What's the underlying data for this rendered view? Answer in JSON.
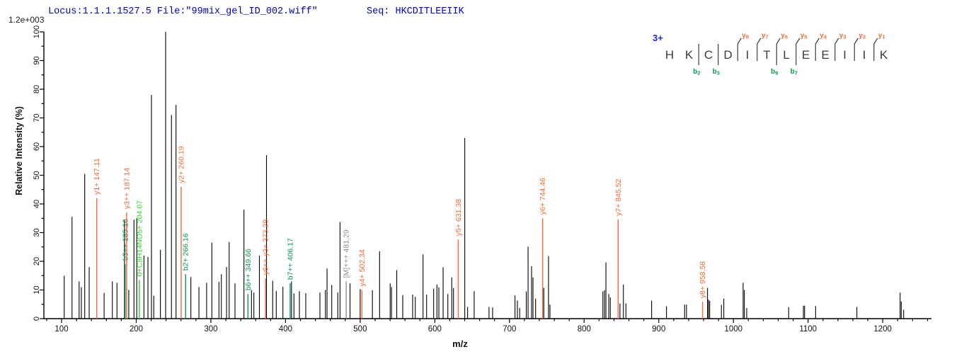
{
  "header": {
    "locus_file": "Locus:1.1.1.1527.5 File:\"99mix_gel_ID_002.wiff\"",
    "seq": "Seq: HKCDITLEEIIK"
  },
  "chart_data": {
    "type": "bar",
    "subtype": "ms2-fragmentation-spectrum",
    "xlabel": "m/z",
    "ylabel": "Relative Intensity (%)",
    "intensity_scale": "1.2e+003",
    "x_axis": {
      "min": 76,
      "max": 1270,
      "major_tick": 100,
      "minor_tick": 20,
      "first_label": 100,
      "last_label": 1200
    },
    "y_axis": {
      "min": 0,
      "max": 100,
      "major_tick": 10,
      "minor_tick": 5
    },
    "legend": "none",
    "grid": false,
    "colors": {
      "y_ion": "#f26b3a",
      "b_ion": "#0a9a50",
      "mod": "#2cd42c",
      "precursor": "#909090",
      "peak": "#000000",
      "header_blue": "#0000c8",
      "charge_blue": "#2222ee",
      "residue_gray": "#3c3c3c"
    },
    "peaks": [
      [
        103.5,
        15
      ],
      [
        114,
        35.5
      ],
      [
        123.5,
        13
      ],
      [
        126.5,
        11
      ],
      [
        131,
        50.5
      ],
      [
        137,
        18
      ],
      [
        157,
        9
      ],
      [
        168,
        13
      ],
      [
        174.2,
        12.5
      ],
      [
        184.3,
        34.5
      ],
      [
        190,
        10
      ],
      [
        197,
        34.5
      ],
      [
        200.7,
        35
      ],
      [
        210.3,
        22
      ],
      [
        215.7,
        21.5
      ],
      [
        220.4,
        78
      ],
      [
        223.5,
        8
      ],
      [
        232.4,
        24
      ],
      [
        239.4,
        100
      ],
      [
        247.2,
        71
      ],
      [
        253.3,
        74.5
      ],
      [
        273.2,
        14.5
      ],
      [
        284,
        11
      ],
      [
        294.3,
        12.5
      ],
      [
        301.3,
        26.5
      ],
      [
        310.8,
        12.8
      ],
      [
        314,
        15.5
      ],
      [
        321,
        18
      ],
      [
        324.5,
        26.7
      ],
      [
        332.3,
        12.3
      ],
      [
        344.3,
        38
      ],
      [
        354.4,
        10
      ],
      [
        357.6,
        9.1
      ],
      [
        365,
        22
      ],
      [
        374.5,
        57
      ],
      [
        382.8,
        13.2
      ],
      [
        387.6,
        9.6
      ],
      [
        396.5,
        11.1
      ],
      [
        408,
        13
      ],
      [
        411.3,
        8.8
      ],
      [
        418.6,
        9.6
      ],
      [
        427.1,
        8.9
      ],
      [
        446.1,
        9.1
      ],
      [
        453.4,
        10
      ],
      [
        455.6,
        17.5
      ],
      [
        461.9,
        11.7
      ],
      [
        470,
        9.1
      ],
      [
        473,
        33.7
      ],
      [
        486.4,
        12.3
      ],
      [
        500,
        10.3
      ],
      [
        516.4,
        9.9
      ],
      [
        526,
        23.5
      ],
      [
        540.2,
        12.3
      ],
      [
        542,
        11
      ],
      [
        549,
        16.9
      ],
      [
        557,
        8.2
      ],
      [
        570.3,
        8.4
      ],
      [
        573.8,
        7.6
      ],
      [
        584.2,
        22.4
      ],
      [
        589,
        8.4
      ],
      [
        598.4,
        10.5
      ],
      [
        602.8,
        11.9
      ],
      [
        605.4,
        10.9
      ],
      [
        611.1,
        17.9
      ],
      [
        617.4,
        8.6
      ],
      [
        622.7,
        14.4
      ],
      [
        625,
        10.7
      ],
      [
        640.1,
        63
      ],
      [
        643.9,
        4.1
      ],
      [
        652.7,
        9.6
      ],
      [
        672.6,
        4.1
      ],
      [
        677.4,
        3.9
      ],
      [
        707.4,
        8.1
      ],
      [
        710.6,
        6.3
      ],
      [
        713.7,
        3.7
      ],
      [
        722.5,
        9.5
      ],
      [
        724.9,
        25.1
      ],
      [
        729.6,
        18.3
      ],
      [
        731.5,
        14.4
      ],
      [
        735,
        7
      ],
      [
        746,
        10.7
      ],
      [
        752.3,
        21.8
      ],
      [
        754.2,
        4.9
      ],
      [
        825.1,
        9.5
      ],
      [
        827.3,
        9.9
      ],
      [
        829.2,
        19.6
      ],
      [
        833,
        8.6
      ],
      [
        835.1,
        7.4
      ],
      [
        848,
        5.3
      ],
      [
        852.6,
        11.9
      ],
      [
        856,
        5.3
      ],
      [
        890.4,
        6.3
      ],
      [
        910.3,
        4.3
      ],
      [
        934.6,
        4.9
      ],
      [
        937.1,
        4.9
      ],
      [
        965.3,
        10.7
      ],
      [
        966.6,
        6.6
      ],
      [
        968.2,
        6.2
      ],
      [
        983.9,
        4.8
      ],
      [
        987.1,
        7
      ],
      [
        1013,
        12.5
      ],
      [
        1014.6,
        10
      ],
      [
        1017.8,
        3.7
      ],
      [
        1074,
        4
      ],
      [
        1093.7,
        4.5
      ],
      [
        1095.3,
        4.5
      ],
      [
        1110.1,
        4.4
      ],
      [
        1165.4,
        4.1
      ],
      [
        1223.3,
        9.1
      ],
      [
        1224.8,
        6
      ],
      [
        1228,
        3.1
      ]
    ],
    "annotated_peaks": [
      {
        "label": "y1+ 147.11",
        "mz": 147.11,
        "intensity": 42,
        "color": "y_ion"
      },
      {
        "label": "b3++ 185.16",
        "mz": 185.16,
        "intensity": 19,
        "color": "b_ion"
      },
      {
        "label": "y3++ 187.14",
        "mz": 187.14,
        "intensity": 37,
        "color": "y_ion"
      },
      {
        "label": "0+C8H14NO5+ 204.07",
        "mz": 204.07,
        "intensity": 13.5,
        "color": "mod"
      },
      {
        "label": "y2+ 260.19",
        "mz": 260.19,
        "intensity": 46,
        "color": "y_ion"
      },
      {
        "label": "b2+ 266.16",
        "mz": 266.16,
        "intensity": 15.5,
        "color": "b_ion"
      },
      {
        "label": "b6++ 349.66",
        "mz": 349.66,
        "intensity": 8.6,
        "color": "b_ion"
      },
      {
        "label": "y6++ y3+ 373.29",
        "mz": 373.29,
        "intensity": 14,
        "color": "y_ion"
      },
      {
        "label": "b7++ 406.17",
        "mz": 406.17,
        "intensity": 12.3,
        "color": "b_ion"
      },
      {
        "label": "[M]+++ 481.29",
        "mz": 481.29,
        "intensity": 13,
        "color": "precursor"
      },
      {
        "label": "y4+ 502.34",
        "mz": 502.34,
        "intensity": 10,
        "color": "y_ion"
      },
      {
        "label": "y5+ 631.38",
        "mz": 631.38,
        "intensity": 27.6,
        "color": "y_ion"
      },
      {
        "label": "y6+ 744.46",
        "mz": 744.46,
        "intensity": 35,
        "color": "y_ion"
      },
      {
        "label": "y7+ 845.52",
        "mz": 845.52,
        "intensity": 34.6,
        "color": "y_ion"
      },
      {
        "label": "y8+ 958.58",
        "mz": 958.58,
        "intensity": 5.9,
        "color": "y_ion"
      }
    ]
  },
  "sequence_panel": {
    "charge_label": "3+",
    "residues": [
      "H",
      "K",
      "C",
      "D",
      "I",
      "T",
      "L",
      "E",
      "E",
      "I",
      "I",
      "K"
    ],
    "y_ions": [
      {
        "ion": "y8",
        "after": 4
      },
      {
        "ion": "y7",
        "after": 5
      },
      {
        "ion": "y6",
        "after": 6
      },
      {
        "ion": "y5",
        "after": 7
      },
      {
        "ion": "y4",
        "after": 8
      },
      {
        "ion": "y3",
        "after": 9
      },
      {
        "ion": "y2",
        "after": 10
      },
      {
        "ion": "y1",
        "after": 11
      }
    ],
    "b_ions": [
      {
        "ion": "b2",
        "after": 2
      },
      {
        "ion": "b3",
        "after": 3
      },
      {
        "ion": "b6",
        "after": 6
      },
      {
        "ion": "b7",
        "after": 7
      }
    ]
  }
}
